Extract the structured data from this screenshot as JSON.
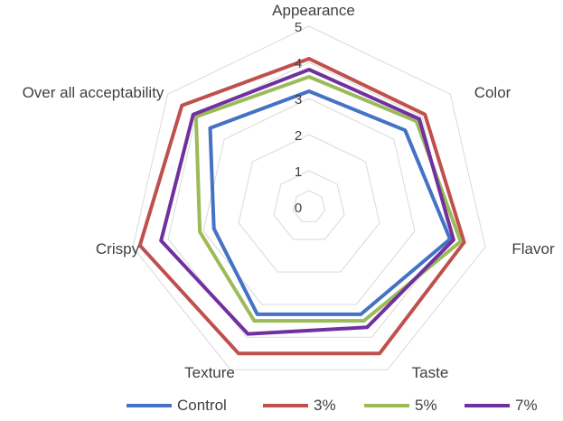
{
  "chart_data": {
    "type": "radar",
    "categories": [
      "Appearance",
      "Color",
      "Flavor",
      "Taste",
      "Texture",
      "Crispy",
      "Over all acceptability"
    ],
    "rlim": [
      0,
      5
    ],
    "ticks": [
      "0",
      "1",
      "2",
      "3",
      "4",
      "5"
    ],
    "grid": true,
    "legend_position": "bottom",
    "series": [
      {
        "name": "Control",
        "color": "#4472c4",
        "values": [
          3.2,
          3.4,
          4.0,
          3.3,
          3.3,
          2.7,
          3.5
        ]
      },
      {
        "name": "3%",
        "color": "#c0504d",
        "values": [
          4.1,
          4.1,
          4.4,
          4.5,
          4.5,
          4.8,
          4.5
        ]
      },
      {
        "name": "5%",
        "color": "#9bbb59",
        "values": [
          3.6,
          3.8,
          4.3,
          3.5,
          3.5,
          3.1,
          4.0
        ]
      },
      {
        "name": "7%",
        "color": "#7030a0",
        "values": [
          3.8,
          3.9,
          4.1,
          3.7,
          3.9,
          4.2,
          4.1
        ]
      }
    ]
  }
}
